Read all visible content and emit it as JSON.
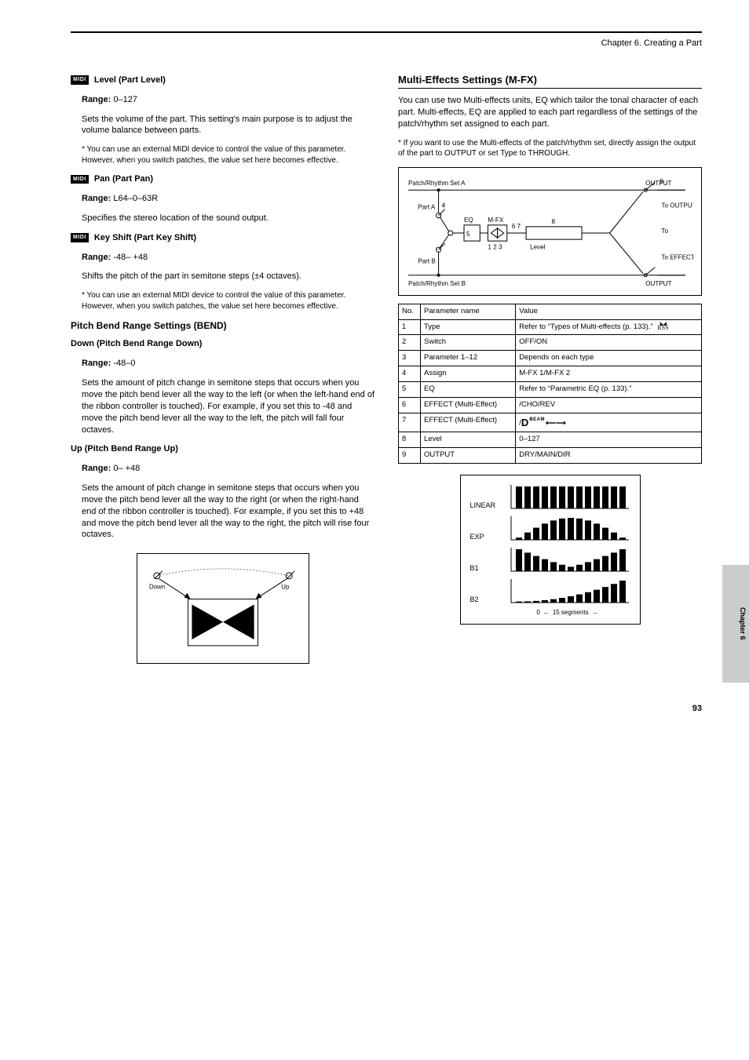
{
  "header": {
    "title": "Chapter 6. Creating a Part"
  },
  "left": {
    "blocks": [
      {
        "midi": true,
        "name": "Level (Part Level)",
        "range": "0–127",
        "desc": "Sets the volume of the part. This setting's main purpose is to adjust the volume balance between parts.",
        "note": "You can use an external MIDI device to control the value of this parameter. However, when you switch patches, the value set here becomes effective."
      },
      {
        "midi": true,
        "name": "Pan (Part Pan)",
        "range": "L64–0–63R",
        "desc": "Specifies the stereo location of the sound output."
      },
      {
        "midi": true,
        "name": "Key Shift (Part Key Shift)",
        "range": "-48– +48",
        "desc": "Shifts the pitch of the part in semitone steps (±4 octaves).",
        "note": "You can use an external MIDI device to control the value of this parameter. However, when you switch patches, the value set here becomes effective."
      }
    ],
    "pitchBendHeading": "Pitch Bend Range Settings (BEND)",
    "pitchBend": [
      {
        "name": "Down (Pitch Bend Range Down)",
        "range": "-48–0",
        "desc": "Sets the amount of pitch change in semitone steps that occurs when you move the pitch bend lever all the way to the left (or when the left-hand end of the ribbon controller is touched). For example, if you set this to -48 and move the pitch bend lever all the way to the left, the pitch will fall four octaves."
      },
      {
        "name": "Up (Pitch Bend Range Up)",
        "range": "0– +48",
        "desc": "Sets the amount of pitch change in semitone steps that occurs when you move the pitch bend lever all the way to the right (or when the right-hand end of the ribbon controller is touched). For example, if you set this to +48 and move the pitch bend lever all the way to the right, the pitch will rise four octaves."
      }
    ],
    "figure": {
      "leftLabel": "Down",
      "rightLabel": "Up",
      "box_bg": "#ffffff",
      "fill": "#000000"
    }
  },
  "right": {
    "mfx": {
      "heading": "Multi-Effects Settings (M-FX)",
      "intro": "You can use two Multi-effects units, EQ which tailor the tonal character of each part. Multi-effects, EQ are applied to each part regardless of the settings of the patch/rhythm set assigned to each part.",
      "noteStar": "* If you want to use the Multi-effects of the patch/rhythm set, directly assign the output of the part to OUTPUT or set Type to THROUGH."
    },
    "chart": {
      "type": "flowchart",
      "background_color": "#ffffff",
      "node_border": "#000000",
      "line_color": "#000000",
      "labels": {
        "patchA": "Patch/Rhythm Set A",
        "patchB": "Patch/Rhythm Set B",
        "partA": "Part A",
        "partB": "Part B",
        "eq": "EQ",
        "mfx": "M-FX",
        "outputTop": "OUTPUT",
        "outputBottom": "OUTPUT",
        "toOutput": "To OUTPUT",
        "toRSS": "To",
        "toDbeam": "To EFFECT",
        "level": "Level"
      }
    },
    "table": {
      "head": [
        "No.",
        "Parameter name",
        "Value"
      ],
      "rows": [
        {
          "no": "1",
          "name": "Type",
          "val": "Refer to “Types of Multi-effects (p. 133).” ",
          "icons": [
            "rss"
          ]
        },
        {
          "no": "2",
          "name": "Switch",
          "val": "OFF/ON"
        },
        {
          "no": "3",
          "name": "Parameter 1–12",
          "val": "Depends on each type"
        },
        {
          "no": "4",
          "name": "Assign",
          "val": "M-FX 1/M-FX 2"
        },
        {
          "no": "5",
          "name": "EQ",
          "val": "Refer to “Parametric EQ (p. 133).”"
        },
        {
          "no": "6",
          "name": "EFFECT (Multi-Effect)",
          "val": "/CHO/REV"
        },
        {
          "no": "7",
          "name": "EFFECT (Multi-Effect)",
          "val": "/",
          "icons": [
            "dbeam"
          ]
        },
        {
          "no": "8",
          "name": "Level",
          "val": "0–127"
        },
        {
          "no": "9",
          "name": "OUTPUT",
          "val": "DRY/MAIN/DIR"
        }
      ]
    },
    "curvefig": {
      "rows": [
        {
          "label": "LINEAR",
          "shape": "linear"
        },
        {
          "label": "EXP",
          "shape": "exp"
        },
        {
          "label": "B1",
          "shape": "b1"
        },
        {
          "label": "B2",
          "shape": "b2"
        }
      ],
      "xlabel_zero": "0",
      "xlabel": "15 segments",
      "bar_color": "#000000"
    }
  },
  "sideTab": "Chapter 6",
  "pageNumber": "93"
}
